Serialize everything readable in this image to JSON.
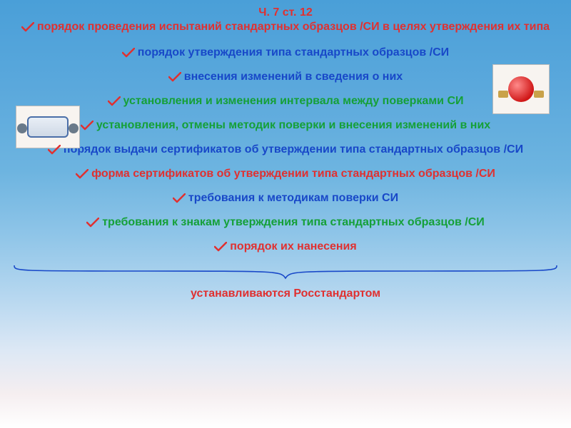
{
  "colors": {
    "red": "#e03030",
    "green": "#15a038",
    "blue": "#1848c8",
    "pencil": "#e03030",
    "brace": "#1848c8"
  },
  "fontsize": {
    "title": 16,
    "line": 16,
    "footer": 16
  },
  "title": {
    "l1": "Ч. 7 ст. 12",
    "l2": "порядок проведения испытаний стандартных образцов /СИ в целях утверждения их типа"
  },
  "items": [
    {
      "text": "порядок утверждения типа стандартных образцов /СИ",
      "color": "blue"
    },
    {
      "text": "внесения изменений в сведения о них",
      "color": "blue"
    },
    {
      "text": "установления и изменения интервала между поверками СИ",
      "color": "green"
    },
    {
      "text": "установления, отмены методик поверки и внесения изменений в них",
      "color": "green"
    },
    {
      "text": "порядок выдачи сертификатов об утверждении типа стандартных образцов /СИ",
      "color": "blue"
    },
    {
      "text": "форма сертификатов об утверждении типа стандартных образцов /СИ",
      "color": "red"
    },
    {
      "text": "требования к методикам поверки СИ",
      "color": "blue"
    },
    {
      "text": "требования к знакам утверждения типа стандартных образцов /СИ",
      "color": "green"
    },
    {
      "text": "порядок их нанесения",
      "color": "red"
    }
  ],
  "footer": "устанавливаются Росстандартом"
}
